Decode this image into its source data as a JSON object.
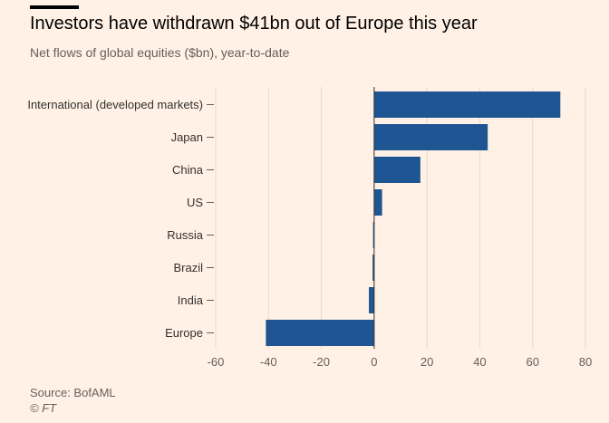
{
  "header": {
    "title": "Investors have withdrawn $41bn out of Europe this year",
    "subtitle": "Net flows of global equities ($bn), year-to-date"
  },
  "footer": {
    "source": "Source: BofAML",
    "credit": "© FT"
  },
  "colors": {
    "background": "#fff1e5",
    "bar": "#1f5592",
    "grid": "#e6d9ce"
  },
  "chart_data": {
    "type": "bar",
    "orientation": "horizontal",
    "categories": [
      "International (developed markets)",
      "Japan",
      "China",
      "US",
      "Russia",
      "Brazil",
      "India",
      "Europe"
    ],
    "values": [
      70.5,
      43,
      17.5,
      3,
      -0.4,
      -0.6,
      -2,
      -41
    ],
    "xlim": [
      -60,
      80
    ],
    "xticks": [
      -60,
      -40,
      -20,
      0,
      20,
      40,
      60,
      80
    ],
    "grid": true
  }
}
